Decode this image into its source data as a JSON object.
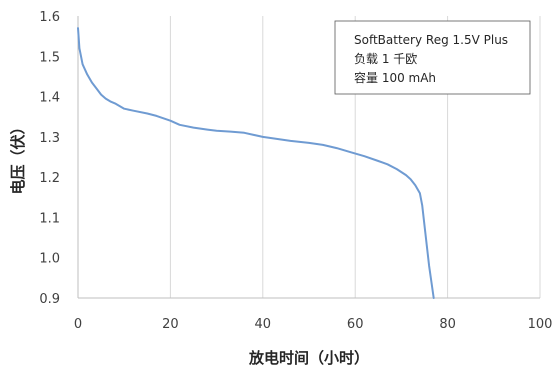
{
  "chart_data": {
    "type": "line",
    "xlabel": "放电时间（小时）",
    "ylabel": "电压（伏）",
    "xlim": [
      0,
      100
    ],
    "ylim": [
      0.9,
      1.6
    ],
    "xticks": [
      0,
      20,
      40,
      60,
      80,
      100
    ],
    "xtick_labels": [
      "0",
      "20",
      "40",
      "60",
      "80",
      "100"
    ],
    "yticks": [
      0.9,
      1.0,
      1.1,
      1.2,
      1.3,
      1.4,
      1.5,
      1.6
    ],
    "ytick_labels": [
      "0.9",
      "1.0",
      "1.1",
      "1.2",
      "1.3",
      "1.4",
      "1.5",
      "1.6"
    ],
    "grid": {
      "vertical": true,
      "horizontal": false
    },
    "legend_position": "top-right",
    "legend_lines": [
      "SoftBattery Reg 1.5V Plus",
      "负载 1 千欧",
      "容量 100 mAh"
    ],
    "line_color": "#6f9bd2",
    "series": [
      {
        "x": [
          0,
          0.3,
          1,
          2,
          3,
          4,
          5,
          6,
          7,
          8,
          10,
          12,
          15,
          17,
          20,
          22,
          25,
          28,
          30,
          33,
          36,
          40,
          43,
          46,
          50,
          53,
          56,
          59,
          62,
          65,
          67,
          69,
          71,
          72,
          73,
          74,
          74.5,
          75,
          75.5,
          76,
          76.5,
          77
        ],
        "y": [
          1.57,
          1.52,
          1.48,
          1.455,
          1.435,
          1.42,
          1.405,
          1.395,
          1.388,
          1.383,
          1.37,
          1.365,
          1.358,
          1.352,
          1.34,
          1.33,
          1.323,
          1.318,
          1.315,
          1.313,
          1.31,
          1.3,
          1.295,
          1.29,
          1.285,
          1.28,
          1.272,
          1.262,
          1.252,
          1.24,
          1.232,
          1.22,
          1.205,
          1.195,
          1.18,
          1.16,
          1.13,
          1.08,
          1.03,
          0.98,
          0.94,
          0.9
        ]
      }
    ]
  }
}
